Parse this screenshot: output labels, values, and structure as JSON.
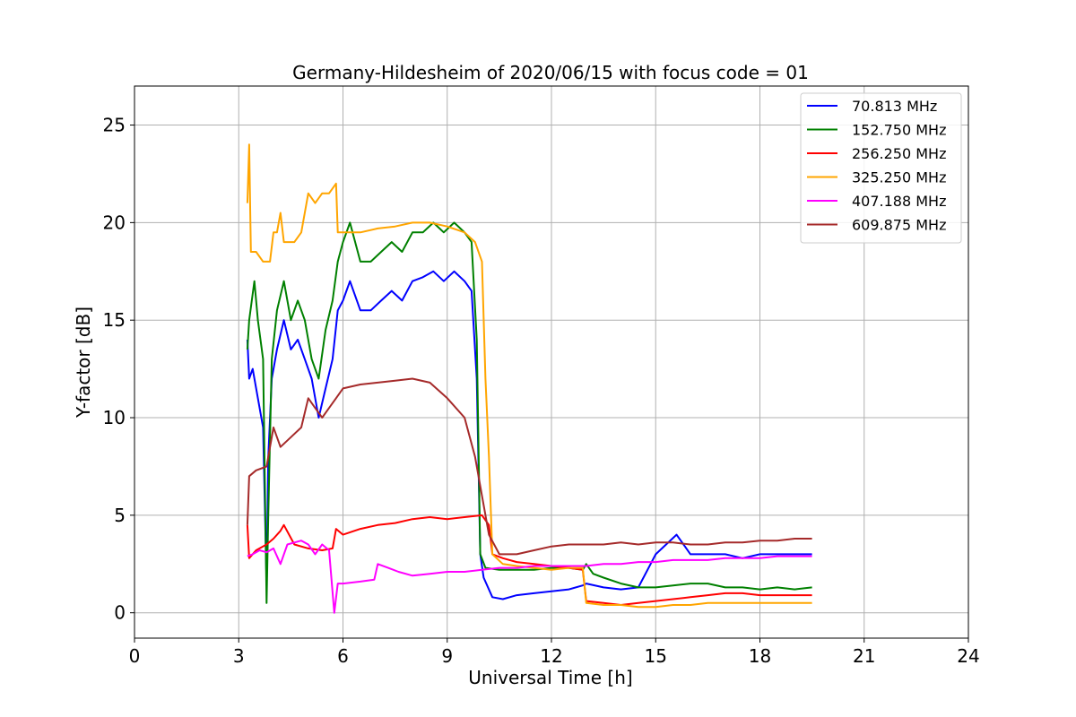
{
  "chart_data": {
    "type": "line",
    "title": "Germany-Hildesheim of 2020/06/15 with focus code = 01",
    "xlabel": "Universal Time [h]",
    "ylabel": "Y-factor [dB]",
    "xlim": [
      0,
      24
    ],
    "ylim": [
      -1.3,
      27
    ],
    "xticks": [
      0,
      3,
      6,
      9,
      12,
      15,
      18,
      21,
      24
    ],
    "yticks": [
      0,
      5,
      10,
      15,
      20,
      25
    ],
    "grid": true,
    "legend_position": "top-right",
    "series": [
      {
        "name": "70.813 MHz",
        "color": "#0000ff",
        "points": [
          [
            3.25,
            14.0
          ],
          [
            3.3,
            12.0
          ],
          [
            3.4,
            12.5
          ],
          [
            3.55,
            11.0
          ],
          [
            3.7,
            9.5
          ],
          [
            3.8,
            1.5
          ],
          [
            3.85,
            8.0
          ],
          [
            3.95,
            12.0
          ],
          [
            4.1,
            13.5
          ],
          [
            4.3,
            15.0
          ],
          [
            4.5,
            13.5
          ],
          [
            4.7,
            14.0
          ],
          [
            4.9,
            13.0
          ],
          [
            5.1,
            12.0
          ],
          [
            5.3,
            10.0
          ],
          [
            5.5,
            11.5
          ],
          [
            5.7,
            13.0
          ],
          [
            5.85,
            15.5
          ],
          [
            6.0,
            16.0
          ],
          [
            6.2,
            17.0
          ],
          [
            6.5,
            15.5
          ],
          [
            6.8,
            15.5
          ],
          [
            7.1,
            16.0
          ],
          [
            7.4,
            16.5
          ],
          [
            7.7,
            16.0
          ],
          [
            8.0,
            17.0
          ],
          [
            8.3,
            17.2
          ],
          [
            8.6,
            17.5
          ],
          [
            8.9,
            17.0
          ],
          [
            9.2,
            17.5
          ],
          [
            9.5,
            17.0
          ],
          [
            9.7,
            16.5
          ],
          [
            9.85,
            12.0
          ],
          [
            9.95,
            3.0
          ],
          [
            10.05,
            1.8
          ],
          [
            10.3,
            0.8
          ],
          [
            10.6,
            0.7
          ],
          [
            11.0,
            0.9
          ],
          [
            11.5,
            1.0
          ],
          [
            12.0,
            1.1
          ],
          [
            12.5,
            1.2
          ],
          [
            12.9,
            1.4
          ],
          [
            13.0,
            1.5
          ],
          [
            13.5,
            1.3
          ],
          [
            14.0,
            1.2
          ],
          [
            14.5,
            1.3
          ],
          [
            15.0,
            3.0
          ],
          [
            15.3,
            3.5
          ],
          [
            15.6,
            4.0
          ],
          [
            15.8,
            3.5
          ],
          [
            16.0,
            3.0
          ],
          [
            16.5,
            3.0
          ],
          [
            17.0,
            3.0
          ],
          [
            17.5,
            2.8
          ],
          [
            18.0,
            3.0
          ],
          [
            18.5,
            3.0
          ],
          [
            19.0,
            3.0
          ],
          [
            19.5,
            3.0
          ]
        ]
      },
      {
        "name": "152.750 MHz",
        "color": "#008000",
        "points": [
          [
            3.25,
            13.5
          ],
          [
            3.3,
            15.0
          ],
          [
            3.45,
            17.0
          ],
          [
            3.55,
            15.0
          ],
          [
            3.7,
            13.0
          ],
          [
            3.8,
            0.5
          ],
          [
            3.85,
            5.0
          ],
          [
            3.95,
            13.0
          ],
          [
            4.1,
            15.5
          ],
          [
            4.3,
            17.0
          ],
          [
            4.5,
            15.0
          ],
          [
            4.7,
            16.0
          ],
          [
            4.9,
            15.0
          ],
          [
            5.1,
            13.0
          ],
          [
            5.3,
            12.0
          ],
          [
            5.5,
            14.5
          ],
          [
            5.7,
            16.0
          ],
          [
            5.85,
            18.0
          ],
          [
            6.0,
            19.0
          ],
          [
            6.2,
            20.0
          ],
          [
            6.5,
            18.0
          ],
          [
            6.8,
            18.0
          ],
          [
            7.1,
            18.5
          ],
          [
            7.4,
            19.0
          ],
          [
            7.7,
            18.5
          ],
          [
            8.0,
            19.5
          ],
          [
            8.3,
            19.5
          ],
          [
            8.6,
            20.0
          ],
          [
            8.9,
            19.5
          ],
          [
            9.2,
            20.0
          ],
          [
            9.5,
            19.5
          ],
          [
            9.7,
            19.0
          ],
          [
            9.85,
            14.0
          ],
          [
            9.95,
            3.0
          ],
          [
            10.1,
            2.3
          ],
          [
            10.5,
            2.2
          ],
          [
            11.0,
            2.2
          ],
          [
            11.5,
            2.2
          ],
          [
            12.0,
            2.3
          ],
          [
            12.5,
            2.3
          ],
          [
            12.9,
            2.2
          ],
          [
            13.0,
            2.5
          ],
          [
            13.2,
            2.0
          ],
          [
            13.5,
            1.8
          ],
          [
            14.0,
            1.5
          ],
          [
            14.5,
            1.3
          ],
          [
            15.0,
            1.3
          ],
          [
            15.5,
            1.4
          ],
          [
            16.0,
            1.5
          ],
          [
            16.5,
            1.5
          ],
          [
            17.0,
            1.3
          ],
          [
            17.5,
            1.3
          ],
          [
            18.0,
            1.2
          ],
          [
            18.5,
            1.3
          ],
          [
            19.0,
            1.2
          ],
          [
            19.5,
            1.3
          ]
        ]
      },
      {
        "name": "256.250 MHz",
        "color": "#ff0000",
        "points": [
          [
            3.25,
            4.5
          ],
          [
            3.3,
            2.8
          ],
          [
            3.5,
            3.2
          ],
          [
            3.8,
            3.5
          ],
          [
            4.0,
            3.8
          ],
          [
            4.2,
            4.2
          ],
          [
            4.3,
            4.5
          ],
          [
            4.6,
            3.5
          ],
          [
            5.0,
            3.3
          ],
          [
            5.4,
            3.2
          ],
          [
            5.7,
            3.3
          ],
          [
            5.8,
            4.3
          ],
          [
            6.0,
            4.0
          ],
          [
            6.5,
            4.3
          ],
          [
            7.0,
            4.5
          ],
          [
            7.5,
            4.6
          ],
          [
            8.0,
            4.8
          ],
          [
            8.5,
            4.9
          ],
          [
            9.0,
            4.8
          ],
          [
            9.5,
            4.9
          ],
          [
            10.0,
            5.0
          ],
          [
            10.2,
            4.5
          ],
          [
            10.3,
            3.0
          ],
          [
            10.6,
            2.8
          ],
          [
            11.0,
            2.6
          ],
          [
            11.5,
            2.5
          ],
          [
            12.0,
            2.4
          ],
          [
            12.5,
            2.3
          ],
          [
            12.9,
            2.2
          ],
          [
            13.0,
            0.6
          ],
          [
            13.5,
            0.5
          ],
          [
            14.0,
            0.4
          ],
          [
            14.5,
            0.5
          ],
          [
            15.0,
            0.6
          ],
          [
            15.5,
            0.7
          ],
          [
            16.0,
            0.8
          ],
          [
            16.5,
            0.9
          ],
          [
            17.0,
            1.0
          ],
          [
            17.5,
            1.0
          ],
          [
            18.0,
            0.9
          ],
          [
            18.5,
            0.9
          ],
          [
            19.0,
            0.9
          ],
          [
            19.5,
            0.9
          ]
        ]
      },
      {
        "name": "325.250 MHz",
        "color": "#ffa500",
        "points": [
          [
            3.25,
            21.0
          ],
          [
            3.3,
            24.0
          ],
          [
            3.35,
            18.5
          ],
          [
            3.5,
            18.5
          ],
          [
            3.7,
            18.0
          ],
          [
            3.9,
            18.0
          ],
          [
            4.0,
            19.5
          ],
          [
            4.1,
            19.5
          ],
          [
            4.2,
            20.5
          ],
          [
            4.3,
            19.0
          ],
          [
            4.6,
            19.0
          ],
          [
            4.8,
            19.5
          ],
          [
            5.0,
            21.5
          ],
          [
            5.2,
            21.0
          ],
          [
            5.4,
            21.5
          ],
          [
            5.6,
            21.5
          ],
          [
            5.8,
            22.0
          ],
          [
            5.85,
            19.5
          ],
          [
            6.0,
            19.5
          ],
          [
            6.5,
            19.5
          ],
          [
            7.0,
            19.7
          ],
          [
            7.5,
            19.8
          ],
          [
            8.0,
            20.0
          ],
          [
            8.5,
            20.0
          ],
          [
            9.0,
            19.8
          ],
          [
            9.5,
            19.5
          ],
          [
            9.8,
            19.0
          ],
          [
            10.0,
            18.0
          ],
          [
            10.1,
            12.0
          ],
          [
            10.2,
            8.0
          ],
          [
            10.3,
            3.0
          ],
          [
            10.6,
            2.5
          ],
          [
            11.0,
            2.4
          ],
          [
            11.5,
            2.3
          ],
          [
            12.0,
            2.2
          ],
          [
            12.5,
            2.3
          ],
          [
            12.9,
            2.3
          ],
          [
            13.0,
            0.5
          ],
          [
            13.5,
            0.4
          ],
          [
            14.0,
            0.4
          ],
          [
            14.5,
            0.3
          ],
          [
            15.0,
            0.3
          ],
          [
            15.5,
            0.4
          ],
          [
            16.0,
            0.4
          ],
          [
            16.5,
            0.5
          ],
          [
            17.0,
            0.5
          ],
          [
            17.5,
            0.5
          ],
          [
            18.0,
            0.5
          ],
          [
            18.5,
            0.5
          ],
          [
            19.0,
            0.5
          ],
          [
            19.5,
            0.5
          ]
        ]
      },
      {
        "name": "407.188 MHz",
        "color": "#ff00ff",
        "points": [
          [
            3.25,
            2.9
          ],
          [
            3.4,
            3.0
          ],
          [
            3.6,
            3.2
          ],
          [
            3.8,
            3.1
          ],
          [
            4.0,
            3.3
          ],
          [
            4.2,
            2.5
          ],
          [
            4.4,
            3.5
          ],
          [
            4.6,
            3.6
          ],
          [
            4.8,
            3.7
          ],
          [
            5.0,
            3.5
          ],
          [
            5.2,
            3.0
          ],
          [
            5.4,
            3.5
          ],
          [
            5.6,
            3.2
          ],
          [
            5.75,
            0.0
          ],
          [
            5.85,
            1.5
          ],
          [
            6.0,
            1.5
          ],
          [
            6.5,
            1.6
          ],
          [
            6.9,
            1.7
          ],
          [
            7.0,
            2.5
          ],
          [
            7.3,
            2.3
          ],
          [
            7.6,
            2.1
          ],
          [
            8.0,
            1.9
          ],
          [
            8.5,
            2.0
          ],
          [
            9.0,
            2.1
          ],
          [
            9.5,
            2.1
          ],
          [
            10.0,
            2.2
          ],
          [
            10.5,
            2.3
          ],
          [
            11.0,
            2.3
          ],
          [
            11.5,
            2.4
          ],
          [
            12.0,
            2.4
          ],
          [
            12.5,
            2.4
          ],
          [
            13.0,
            2.4
          ],
          [
            13.5,
            2.5
          ],
          [
            14.0,
            2.5
          ],
          [
            14.5,
            2.6
          ],
          [
            15.0,
            2.6
          ],
          [
            15.5,
            2.7
          ],
          [
            16.0,
            2.7
          ],
          [
            16.5,
            2.7
          ],
          [
            17.0,
            2.8
          ],
          [
            17.5,
            2.8
          ],
          [
            18.0,
            2.8
          ],
          [
            18.5,
            2.9
          ],
          [
            19.0,
            2.9
          ],
          [
            19.5,
            2.9
          ]
        ]
      },
      {
        "name": "609.875 MHz",
        "color": "#a52a2a",
        "points": [
          [
            3.25,
            4.5
          ],
          [
            3.3,
            7.0
          ],
          [
            3.5,
            7.3
          ],
          [
            3.8,
            7.5
          ],
          [
            4.0,
            9.5
          ],
          [
            4.2,
            8.5
          ],
          [
            4.5,
            9.0
          ],
          [
            4.8,
            9.5
          ],
          [
            5.0,
            11.0
          ],
          [
            5.2,
            10.5
          ],
          [
            5.4,
            10.0
          ],
          [
            5.6,
            10.5
          ],
          [
            5.8,
            11.0
          ],
          [
            6.0,
            11.5
          ],
          [
            6.5,
            11.7
          ],
          [
            7.0,
            11.8
          ],
          [
            7.5,
            11.9
          ],
          [
            8.0,
            12.0
          ],
          [
            8.5,
            11.8
          ],
          [
            9.0,
            11.0
          ],
          [
            9.5,
            10.0
          ],
          [
            9.8,
            8.0
          ],
          [
            10.0,
            6.0
          ],
          [
            10.2,
            4.0
          ],
          [
            10.5,
            3.0
          ],
          [
            11.0,
            3.0
          ],
          [
            11.5,
            3.2
          ],
          [
            12.0,
            3.4
          ],
          [
            12.5,
            3.5
          ],
          [
            13.0,
            3.5
          ],
          [
            13.5,
            3.5
          ],
          [
            14.0,
            3.6
          ],
          [
            14.5,
            3.5
          ],
          [
            15.0,
            3.6
          ],
          [
            15.5,
            3.6
          ],
          [
            16.0,
            3.5
          ],
          [
            16.5,
            3.5
          ],
          [
            17.0,
            3.6
          ],
          [
            17.5,
            3.6
          ],
          [
            18.0,
            3.7
          ],
          [
            18.5,
            3.7
          ],
          [
            19.0,
            3.8
          ],
          [
            19.5,
            3.8
          ]
        ]
      }
    ]
  }
}
